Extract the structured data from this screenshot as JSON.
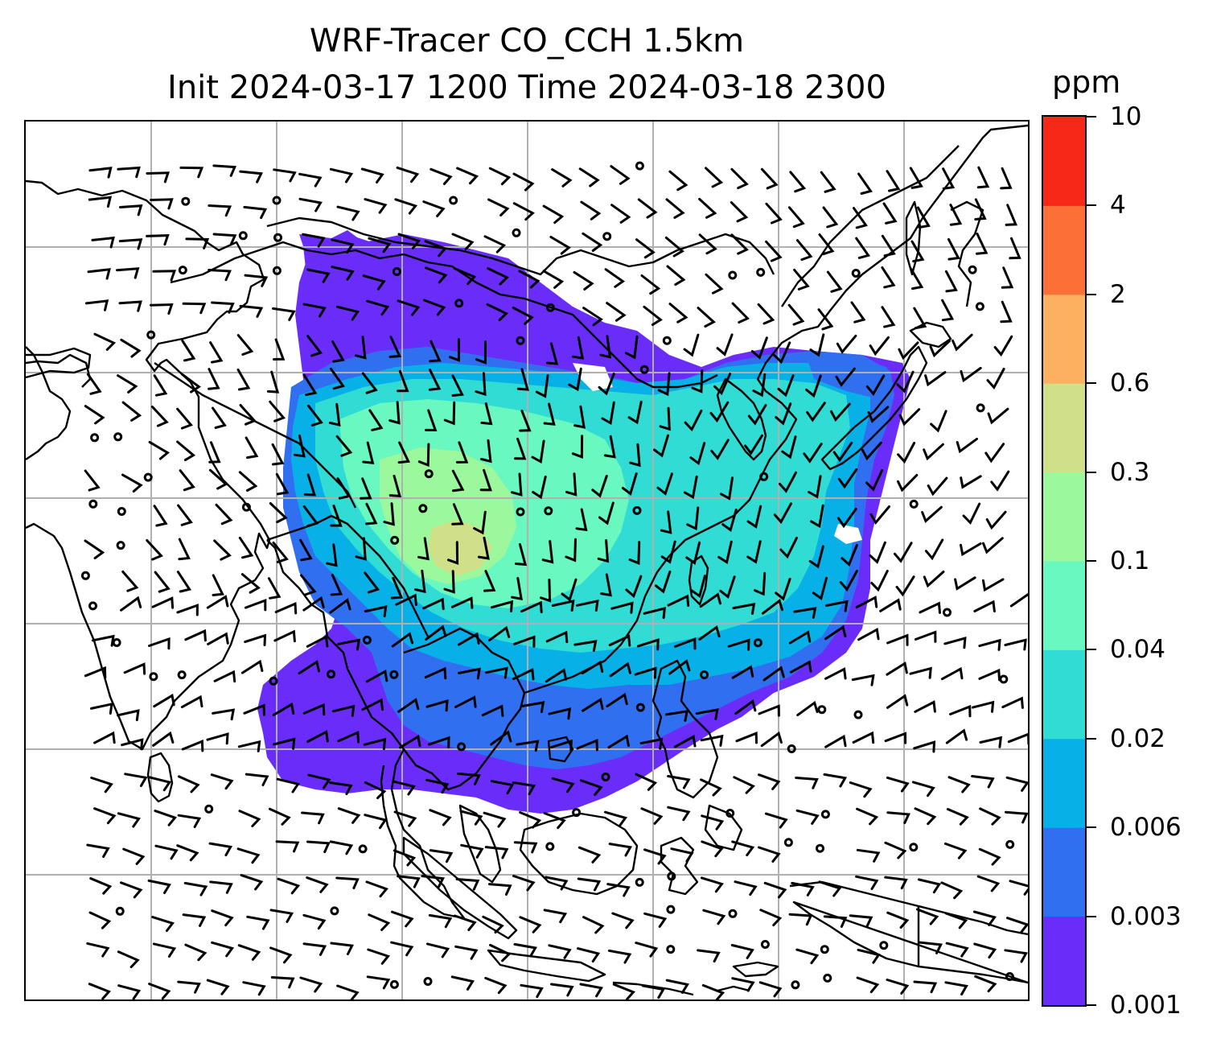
{
  "title": {
    "line1": "WRF-Tracer CO_CCH 1.5km",
    "line2": "Init 2024-03-17 1200 Time 2024-03-18 2300"
  },
  "colorbar": {
    "unit": "ppm",
    "levels": [
      {
        "label": "0.001",
        "color": "#6a2cf8"
      },
      {
        "label": "0.003",
        "color": "#3070f0"
      },
      {
        "label": "0.006",
        "color": "#08b0e8"
      },
      {
        "label": "0.02",
        "color": "#30dcd4"
      },
      {
        "label": "0.04",
        "color": "#68f8c0"
      },
      {
        "label": "0.1",
        "color": "#9cf89c"
      },
      {
        "label": "0.3",
        "color": "#d0e088"
      },
      {
        "label": "0.6",
        "color": "#fcb060"
      },
      {
        "label": "2",
        "color": "#fc7038"
      },
      {
        "label": "4",
        "color": "#f82818"
      },
      {
        "label": "10",
        "color": null
      }
    ]
  },
  "map": {
    "gridlines": true,
    "plume_colors": [
      "#6a2cf8",
      "#3070f0",
      "#08b0e8",
      "#30dcd4",
      "#68f8c0",
      "#9cf89c",
      "#d0e088"
    ],
    "coastline_color": "#000000",
    "grid_color": "#b0b0b0",
    "wind_symbol": "wind-barbs"
  }
}
